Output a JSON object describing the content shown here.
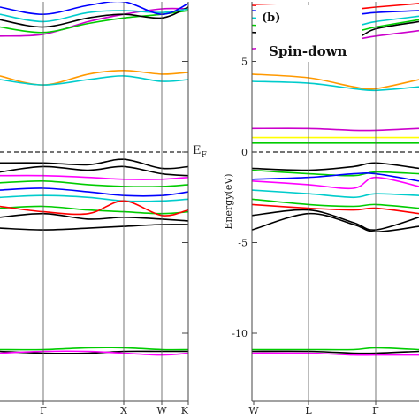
{
  "chart_data": [
    {
      "panel": "a",
      "type": "line",
      "x_kpoints": [
        "Γ",
        "X",
        "W",
        "K"
      ],
      "ylim": [
        -13.5,
        8.5
      ],
      "fermi_label": "E",
      "fermi_sub": "F",
      "colors": [
        "#000000",
        "#ff0000",
        "#00cc00",
        "#0000ff",
        "#00cccc",
        "#ff00ff",
        "#ff9900",
        "#ffff00",
        "#888888"
      ],
      "bands": [
        {
          "color": "#ff9900",
          "y": [
            4.2,
            3.7,
            4.3,
            4.5,
            4.3,
            4.4
          ]
        },
        {
          "color": "#00cccc",
          "y": [
            4.0,
            3.7,
            4.0,
            4.2,
            3.9,
            4.0
          ]
        },
        {
          "color": "#cc00cc",
          "y": [
            6.4,
            6.5,
            7.2,
            7.6,
            7.9,
            7.9
          ]
        },
        {
          "color": "#00cc00",
          "y": [
            6.9,
            6.6,
            7.1,
            7.4,
            7.6,
            7.8
          ]
        },
        {
          "color": "#000000",
          "y": [
            7.3,
            6.9,
            7.4,
            7.6,
            7.4,
            8.0
          ]
        },
        {
          "color": "#00cccc",
          "y": [
            7.6,
            7.2,
            7.7,
            7.8,
            7.7,
            7.9
          ]
        },
        {
          "color": "#0000ff",
          "y": [
            8.0,
            7.6,
            8.1,
            8.3,
            7.6,
            8.2
          ]
        },
        {
          "color": "#000000",
          "y": [
            -0.6,
            -0.6,
            -0.7,
            -0.4,
            -0.9,
            -0.8
          ]
        },
        {
          "color": "#000000",
          "y": [
            -1.1,
            -0.8,
            -1.0,
            -0.8,
            -1.2,
            -1.3
          ]
        },
        {
          "color": "#ff00ff",
          "y": [
            -1.3,
            -1.3,
            -1.4,
            -1.5,
            -1.5,
            -1.4
          ]
        },
        {
          "color": "#00cc00",
          "y": [
            -1.7,
            -1.6,
            -1.8,
            -1.9,
            -1.9,
            -1.8
          ]
        },
        {
          "color": "#0000ff",
          "y": [
            -2.1,
            -2.0,
            -2.2,
            -2.4,
            -2.4,
            -2.2
          ]
        },
        {
          "color": "#00cccc",
          "y": [
            -2.5,
            -2.4,
            -2.5,
            -2.7,
            -2.7,
            -2.6
          ]
        },
        {
          "color": "#00cc00",
          "y": [
            -3.1,
            -3.0,
            -3.2,
            -3.3,
            -3.4,
            -3.3
          ]
        },
        {
          "color": "#ff0000",
          "y": [
            -3.0,
            -3.3,
            -3.4,
            -2.7,
            -3.5,
            -3.2
          ]
        },
        {
          "color": "#000000",
          "y": [
            -3.6,
            -3.4,
            -3.7,
            -3.6,
            -3.7,
            -3.8
          ]
        },
        {
          "color": "#000000",
          "y": [
            -4.2,
            -4.3,
            -4.2,
            -4.1,
            -4.0,
            -4.0
          ]
        },
        {
          "color": "#00cc00",
          "y": [
            -10.9,
            -10.9,
            -10.8,
            -10.8,
            -10.9,
            -10.9
          ]
        },
        {
          "color": "#000000",
          "y": [
            -11.0,
            -11.1,
            -11.1,
            -11.0,
            -11.0,
            -11.0
          ]
        },
        {
          "color": "#ff00ff",
          "y": [
            -11.1,
            -11.0,
            -11.0,
            -11.1,
            -11.2,
            -11.1
          ]
        }
      ]
    },
    {
      "panel": "b",
      "title": "Spin-down",
      "panel_label": "(b)",
      "type": "line",
      "x_kpoints": [
        "W",
        "L",
        "Γ"
      ],
      "ylabel": "Energy(eV)",
      "yticks": [
        5,
        0,
        -5,
        -10
      ],
      "ylim": [
        -13.5,
        8.5
      ],
      "bands": [
        {
          "color": "#ff9900",
          "y": [
            4.3,
            4.1,
            3.6,
            3.5,
            4.0
          ]
        },
        {
          "color": "#00cccc",
          "y": [
            3.9,
            3.8,
            3.5,
            3.4,
            3.6
          ]
        },
        {
          "color": "#cc00cc",
          "y": [
            1.3,
            1.3,
            1.2,
            1.2,
            1.3
          ]
        },
        {
          "color": "#ffff00",
          "y": [
            0.8,
            0.8,
            0.8,
            0.8,
            0.8
          ]
        },
        {
          "color": "#00cc00",
          "y": [
            0.5,
            0.5,
            0.5,
            0.5,
            0.5
          ]
        },
        {
          "color": "#000000",
          "y": [
            -0.9,
            -1.0,
            -0.8,
            -0.6,
            -0.9
          ]
        },
        {
          "color": "#00cc00",
          "y": [
            -1.0,
            -1.2,
            -1.3,
            -1.1,
            -1.2
          ]
        },
        {
          "color": "#0000ff",
          "y": [
            -1.5,
            -1.4,
            -1.2,
            -1.2,
            -1.6
          ]
        },
        {
          "color": "#ff00ff",
          "y": [
            -1.6,
            -1.8,
            -2.0,
            -1.4,
            -1.9
          ]
        },
        {
          "color": "#00cccc",
          "y": [
            -2.1,
            -2.3,
            -2.5,
            -2.3,
            -2.4
          ]
        },
        {
          "color": "#00cc00",
          "y": [
            -2.6,
            -2.9,
            -3.0,
            -2.9,
            -3.1
          ]
        },
        {
          "color": "#ff0000",
          "y": [
            -2.9,
            -3.1,
            -3.2,
            -3.1,
            -3.4
          ]
        },
        {
          "color": "#000000",
          "y": [
            -3.5,
            -3.2,
            -3.9,
            -4.3,
            -3.6
          ]
        },
        {
          "color": "#000000",
          "y": [
            -4.3,
            -3.4,
            -4.0,
            -4.4,
            -4.1
          ]
        },
        {
          "color": "#00cc00",
          "y": [
            -10.9,
            -10.9,
            -10.9,
            -10.8,
            -10.9
          ]
        },
        {
          "color": "#000000",
          "y": [
            -11.0,
            -11.0,
            -11.1,
            -11.1,
            -11.0
          ]
        },
        {
          "color": "#ff00ff",
          "y": [
            -11.1,
            -11.1,
            -11.2,
            -11.2,
            -11.2
          ]
        },
        {
          "color": "#000000",
          "y": [
            6.6,
            6.5,
            6.3,
            6.8,
            7.2
          ]
        },
        {
          "color": "#00cc00",
          "y": [
            7.0,
            6.9,
            6.7,
            6.9,
            7.3
          ]
        },
        {
          "color": "#00cccc",
          "y": [
            7.4,
            7.3,
            7.0,
            7.2,
            7.5
          ]
        },
        {
          "color": "#cc00cc",
          "y": [
            5.7,
            5.9,
            6.2,
            6.4,
            6.7
          ]
        },
        {
          "color": "#0000ff",
          "y": [
            7.8,
            7.7,
            7.6,
            7.7,
            7.8
          ]
        },
        {
          "color": "#ff0000",
          "y": [
            8.1,
            8.0,
            7.9,
            8.0,
            8.2
          ]
        }
      ]
    }
  ]
}
